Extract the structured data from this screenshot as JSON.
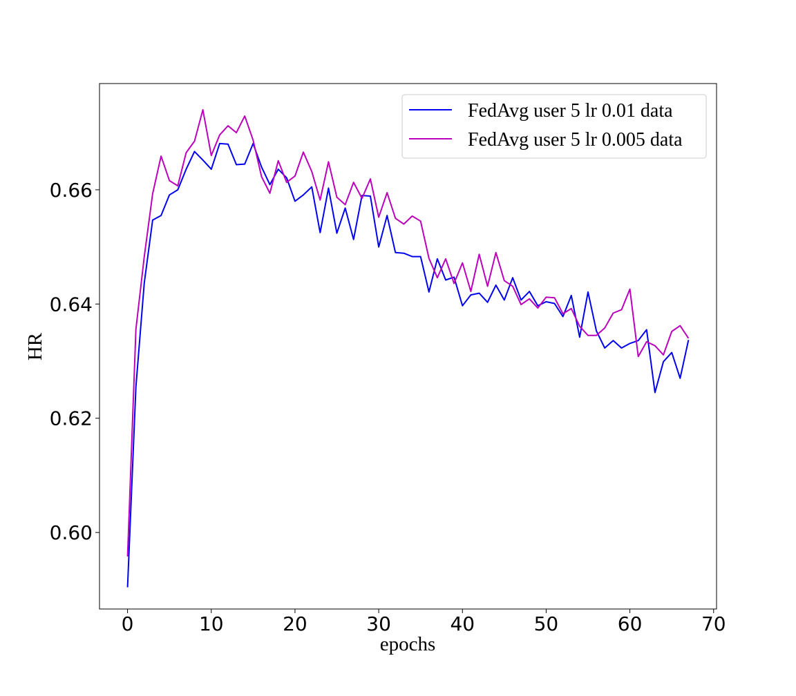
{
  "chart_data": {
    "type": "line",
    "xlabel": "epochs",
    "ylabel": "HR",
    "xlim": [
      -3.35,
      70.35
    ],
    "ylim": [
      0.5866,
      0.6786
    ],
    "xticks": [
      0,
      10,
      20,
      30,
      40,
      50,
      60,
      70
    ],
    "yticks": [
      0.6,
      0.62,
      0.64,
      0.66
    ],
    "xtick_labels": [
      "0",
      "10",
      "20",
      "30",
      "40",
      "50",
      "60",
      "70"
    ],
    "ytick_labels": [
      "0.60",
      "0.62",
      "0.64",
      "0.66"
    ],
    "grid": false,
    "legend_position": "top-right",
    "x": [
      0,
      1,
      2,
      3,
      4,
      5,
      6,
      7,
      8,
      9,
      10,
      11,
      12,
      13,
      14,
      15,
      16,
      17,
      18,
      19,
      20,
      21,
      22,
      23,
      24,
      25,
      26,
      27,
      28,
      29,
      30,
      31,
      32,
      33,
      34,
      35,
      36,
      37,
      38,
      39,
      40,
      41,
      42,
      43,
      44,
      45,
      46,
      47,
      48,
      49,
      50,
      51,
      52,
      53,
      54,
      55,
      56,
      57,
      58,
      59,
      60,
      61,
      62,
      63,
      64,
      65,
      66,
      67
    ],
    "series": [
      {
        "name": "FedAvg user 5 lr 0.01 data",
        "color": "#0000ee",
        "values": [
          0.5904,
          0.6255,
          0.6437,
          0.6547,
          0.6555,
          0.6591,
          0.66,
          0.6636,
          0.6667,
          0.6652,
          0.6636,
          0.6681,
          0.668,
          0.6644,
          0.6645,
          0.6681,
          0.664,
          0.6609,
          0.6636,
          0.6621,
          0.658,
          0.6591,
          0.6605,
          0.6525,
          0.6603,
          0.6524,
          0.6568,
          0.6513,
          0.659,
          0.6589,
          0.65,
          0.6555,
          0.649,
          0.6489,
          0.6483,
          0.6483,
          0.6421,
          0.6479,
          0.6442,
          0.6447,
          0.6397,
          0.6416,
          0.6419,
          0.6403,
          0.6433,
          0.6407,
          0.6446,
          0.6407,
          0.6422,
          0.6397,
          0.6404,
          0.6401,
          0.6378,
          0.6415,
          0.6342,
          0.6421,
          0.6353,
          0.6323,
          0.6336,
          0.6323,
          0.6331,
          0.6336,
          0.6355,
          0.6245,
          0.6299,
          0.6315,
          0.627,
          0.6337
        ]
      },
      {
        "name": "FedAvg user 5 lr 0.005 data",
        "color": "#bb00bb",
        "values": [
          0.5958,
          0.6356,
          0.6483,
          0.6593,
          0.6659,
          0.6616,
          0.6607,
          0.6665,
          0.6685,
          0.674,
          0.666,
          0.6696,
          0.6712,
          0.67,
          0.6729,
          0.6687,
          0.6623,
          0.6594,
          0.6651,
          0.6613,
          0.6624,
          0.6666,
          0.6632,
          0.6582,
          0.6649,
          0.6587,
          0.6574,
          0.6613,
          0.6585,
          0.6619,
          0.6552,
          0.6595,
          0.655,
          0.654,
          0.6554,
          0.6545,
          0.648,
          0.6446,
          0.6479,
          0.6436,
          0.6472,
          0.6422,
          0.6487,
          0.6431,
          0.649,
          0.6441,
          0.6431,
          0.6399,
          0.6409,
          0.6393,
          0.6412,
          0.6411,
          0.6383,
          0.6392,
          0.6361,
          0.6345,
          0.6345,
          0.6358,
          0.6384,
          0.639,
          0.6426,
          0.6308,
          0.6334,
          0.6327,
          0.6311,
          0.6352,
          0.6362,
          0.634
        ]
      }
    ]
  }
}
